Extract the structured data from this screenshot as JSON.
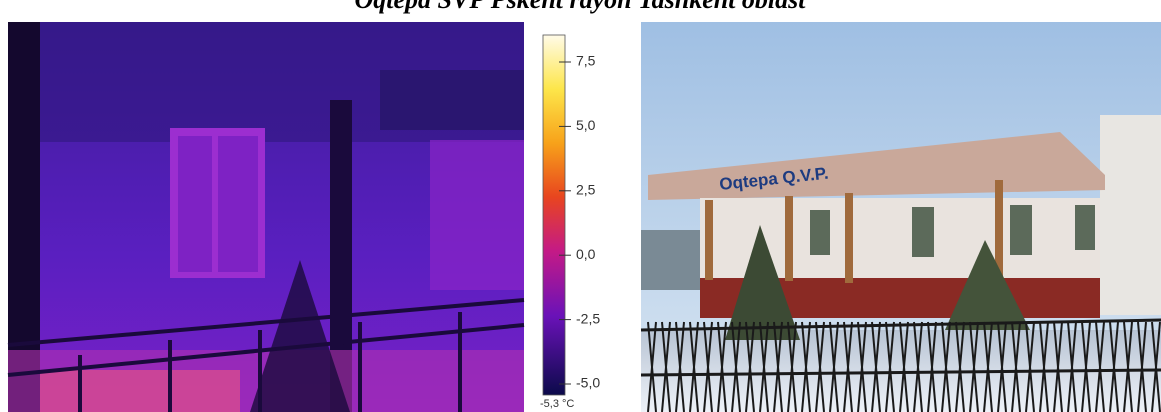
{
  "header": {
    "title": "Oqtepa SVP Pskent rayon Tashkent oblast"
  },
  "thermal_image": {
    "colorbar": {
      "ticks": [
        "7,5",
        "5,0",
        "2,5",
        "0,0",
        "-2,5",
        "-5,0"
      ],
      "min_label": "-5,3 °C"
    }
  },
  "photo": {
    "sign": "Oqtepa Q.V.P."
  }
}
